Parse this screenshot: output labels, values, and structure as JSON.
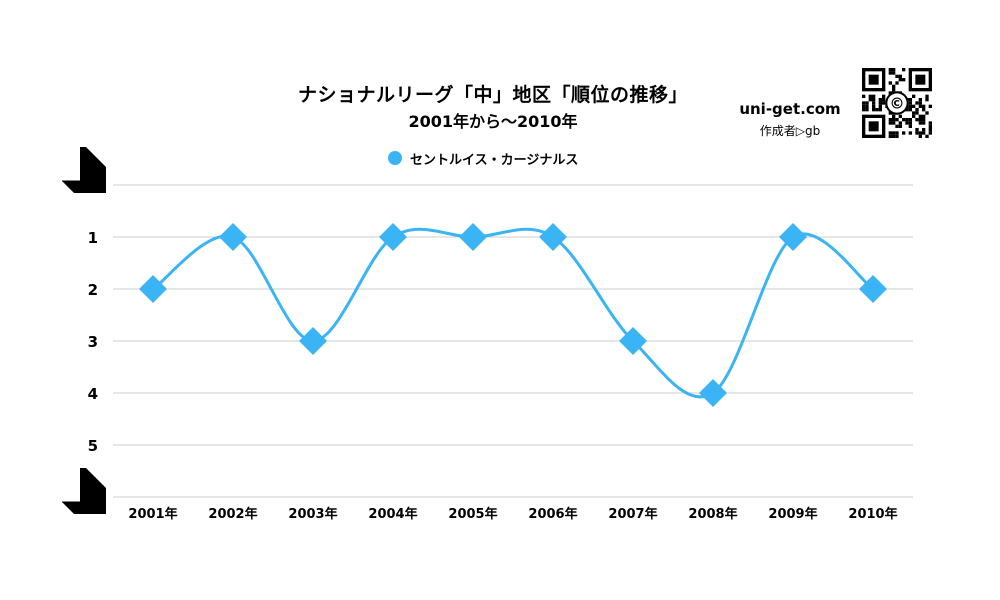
{
  "header": {
    "title": "ナショナルリーグ「中」地区「順位の推移」",
    "subtitle": "2001年から〜2010年",
    "brand": "uni-get.com",
    "author": "作成者▷gb"
  },
  "icons": {
    "qr": "qr-code-icon",
    "top_corner": "corner-arrow-icon",
    "bottom_corner": "corner-arrow-icon"
  },
  "colors": {
    "series": "#3ab4f5",
    "grid": "#cccccc",
    "text": "#000000"
  },
  "chart_data": {
    "type": "line",
    "title": "ナショナルリーグ「中」地区「順位の推移」",
    "subtitle": "2001年から〜2010年",
    "categories": [
      "2001年",
      "2002年",
      "2003年",
      "2004年",
      "2005年",
      "2006年",
      "2007年",
      "2008年",
      "2009年",
      "2010年"
    ],
    "series": [
      {
        "name": "セントルイス・カージナルス",
        "values": [
          2,
          1,
          3,
          1,
          1,
          1,
          3,
          4,
          1,
          2
        ]
      }
    ],
    "yticks": [
      "1",
      "2",
      "3",
      "4",
      "5"
    ],
    "ylim": [
      0,
      6
    ],
    "y_reversed": true,
    "marker": "diamond",
    "smooth": true,
    "grid": true,
    "legend": "top"
  }
}
